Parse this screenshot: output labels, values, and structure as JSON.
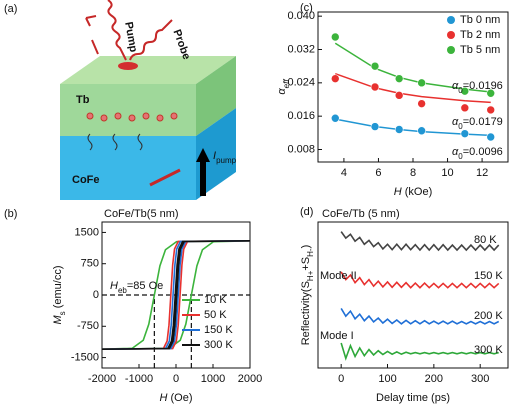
{
  "diagram": {
    "panel_label": "(a)",
    "pump": "Pump",
    "probe": "Probe",
    "top_layer": "Tb",
    "bottom_layer": "CoFe",
    "current": [
      {
        "text": "I",
        "style": "italic"
      },
      {
        "text": "pump",
        "style": "sub"
      }
    ]
  },
  "chart_data": [
    {
      "type": "line",
      "panel_label": "(b)",
      "title": "CoFe/Tb(5 nm)",
      "xlabel": [
        {
          "text": "H",
          "style": "italic"
        },
        {
          "text": " (Oe)"
        }
      ],
      "ylabel": [
        {
          "text": "M",
          "style": "italic"
        },
        {
          "text": "s",
          "style": "sub"
        },
        {
          "text": " (emu/cc)"
        }
      ],
      "xlim": [
        -2000,
        2000
      ],
      "xticks": [
        -2000,
        -1000,
        0,
        1000,
        2000
      ],
      "ylim": [
        -1750,
        1750
      ],
      "yticks": [
        -1500,
        -750,
        0,
        750,
        1500
      ],
      "legend": "lower right",
      "reference_lines": {
        "y": [
          0
        ],
        "x": [
          -585,
          415
        ]
      },
      "annotations": [
        {
          "parts": [
            {
              "text": "H",
              "style": "italic"
            },
            {
              "text": "eb",
              "style": "sub"
            },
            {
              "text": "=85 Oe"
            }
          ],
          "color": "#3cb43c"
        }
      ],
      "series": [
        {
          "name": "10 K",
          "color": "#3cb43c",
          "x": [
            2000,
            15,
            -285,
            -435,
            -585,
            -735,
            -885,
            -1185,
            -2000,
            -2000,
            -185,
            115,
            265,
            415,
            565,
            715,
            1015,
            2000
          ],
          "values": [
            1300,
            1279,
            1084,
            698,
            0,
            -698,
            -1084,
            -1279,
            -1300,
            -1300,
            -1279,
            -1084,
            -698,
            0,
            698,
            1084,
            1279,
            1300
          ]
        },
        {
          "name": "50 K",
          "color": "#e8312f",
          "x": [
            2000,
            60,
            -40,
            -90,
            -140,
            -190,
            -240,
            -340,
            -2000,
            -2000,
            -90,
            10,
            60,
            110,
            160,
            210,
            310,
            2000
          ],
          "values": [
            1300,
            1283,
            1103,
            721,
            0,
            -721,
            -1103,
            -1283,
            -1300,
            -1300,
            -1283,
            -1103,
            -721,
            0,
            721,
            1103,
            1283,
            1300
          ]
        },
        {
          "name": "150 K",
          "color": "#1f6fd6",
          "x": [
            2000,
            120,
            20,
            -30,
            -80,
            -130,
            -180,
            -280,
            -2000,
            -2000,
            -140,
            -40,
            10,
            60,
            110,
            160,
            260,
            2000
          ],
          "values": [
            1300,
            1283,
            1103,
            721,
            0,
            -721,
            -1103,
            -1283,
            -1300,
            -1300,
            -1283,
            -1103,
            -721,
            0,
            721,
            1103,
            1283,
            1300
          ]
        },
        {
          "name": "300 K",
          "color": "#111111",
          "x": [
            2000,
            180,
            80,
            30,
            -20,
            -70,
            -120,
            -220,
            -2000,
            -2000,
            -180,
            -80,
            -30,
            20,
            70,
            120,
            220,
            2000
          ],
          "values": [
            1300,
            1283,
            1103,
            721,
            0,
            -721,
            -1103,
            -1283,
            -1300,
            -1300,
            -1283,
            -1103,
            -721,
            0,
            721,
            1103,
            1283,
            1300
          ]
        }
      ]
    },
    {
      "type": "scatter",
      "panel_label": "(c)",
      "xlabel": [
        {
          "text": "H",
          "style": "italic"
        },
        {
          "text": " (kOe)"
        }
      ],
      "ylabel": [
        {
          "text": "α",
          "style": "italic"
        },
        {
          "text": "eff",
          "style": "sub italic"
        }
      ],
      "xlim": [
        2.5,
        13.5
      ],
      "xticks": [
        4,
        6,
        8,
        10,
        12
      ],
      "ylim": [
        0.005,
        0.041
      ],
      "yticks": [
        0.008,
        0.016,
        0.024,
        0.032,
        {
          "value": 0.04,
          "label": "0.040"
        }
      ],
      "legend": "upper right",
      "x": [
        3.5,
        5.8,
        7.2,
        8.5,
        11,
        12.5
      ],
      "annotations": [
        {
          "parts": [
            {
              "text": "α",
              "style": "italic"
            },
            {
              "text": "0",
              "style": "sub"
            },
            {
              "text": "=0.0196"
            }
          ],
          "color": "#3cb43c"
        },
        {
          "parts": [
            {
              "text": "α",
              "style": "italic"
            },
            {
              "text": "0",
              "style": "sub"
            },
            {
              "text": "=0.0179"
            }
          ],
          "color": "#e8312f"
        },
        {
          "parts": [
            {
              "text": "α",
              "style": "italic"
            },
            {
              "text": "0",
              "style": "sub"
            },
            {
              "text": "=0.0096"
            }
          ],
          "color": "#2196d3"
        }
      ],
      "series": [
        {
          "name": "Tb 0 nm",
          "color": "#2196d3",
          "values": [
            0.0155,
            0.0135,
            0.0128,
            0.0125,
            0.0118,
            0.011
          ],
          "fit": [
            0.0153,
            0.0135,
            0.0128,
            0.0123,
            0.0117,
            0.0114
          ]
        },
        {
          "name": "Tb 2 nm",
          "color": "#e8312f",
          "values": [
            0.025,
            0.023,
            0.021,
            0.019,
            0.018,
            0.0175
          ],
          "fit": [
            0.0262,
            0.0228,
            0.0215,
            0.0207,
            0.0197,
            0.0193
          ]
        },
        {
          "name": "Tb 5 nm",
          "color": "#3cb43c",
          "values": [
            0.035,
            0.028,
            0.025,
            0.024,
            0.022,
            0.0215
          ],
          "fit": [
            0.0335,
            0.0275,
            0.0253,
            0.024,
            0.0225,
            0.0218
          ]
        }
      ]
    },
    {
      "type": "line",
      "panel_label": "(d)",
      "title": "CoFe/Tb (5 nm)",
      "xlabel": [
        {
          "text": "Delay time (ps)"
        }
      ],
      "ylabel": [
        {
          "text": "Reflectivity(S"
        },
        {
          "text": "H+",
          "style": "sub"
        },
        {
          "text": "+S"
        },
        {
          "text": "H-",
          "style": "sub"
        },
        {
          "text": ")"
        }
      ],
      "xlim": [
        -50,
        360
      ],
      "xticks": [
        0,
        100,
        200,
        300
      ],
      "ylim": [
        0.2,
        4.0
      ],
      "x": [
        0,
        10,
        20,
        30,
        40,
        50,
        60,
        70,
        80,
        90,
        100,
        110,
        120,
        130,
        140,
        150,
        160,
        170,
        180,
        190,
        200,
        210,
        220,
        230,
        240,
        250,
        260,
        270,
        280,
        290,
        300,
        310,
        320,
        330,
        340
      ],
      "annotations": [
        {
          "parts": [
            {
              "text": "80 K"
            }
          ],
          "color": "#111111"
        },
        {
          "parts": [
            {
              "text": "Mode II"
            }
          ],
          "color": "#e8312f"
        },
        {
          "parts": [
            {
              "text": "150 K"
            }
          ],
          "color": "#111111"
        },
        {
          "parts": [
            {
              "text": "200 K"
            }
          ],
          "color": "#111111"
        },
        {
          "parts": [
            {
              "text": "Mode I"
            }
          ],
          "color": "#111111"
        },
        {
          "parts": [
            {
              "text": "300 K"
            }
          ],
          "color": "#111111"
        }
      ],
      "series": [
        {
          "color": "#444444",
          "values": [
            3.75,
            3.58,
            3.68,
            3.5,
            3.6,
            3.42,
            3.52,
            3.36,
            3.46,
            3.3,
            3.42,
            3.28,
            3.42,
            3.28,
            3.42,
            3.28,
            3.41,
            3.27,
            3.41,
            3.27,
            3.41,
            3.27,
            3.41,
            3.27,
            3.4,
            3.27,
            3.4,
            3.27,
            3.4,
            3.27,
            3.4,
            3.27,
            3.4,
            3.27,
            3.4
          ]
        },
        {
          "color": "#e8312f",
          "values": [
            2.7,
            2.5,
            2.62,
            2.42,
            2.55,
            2.37,
            2.5,
            2.33,
            2.46,
            2.31,
            2.44,
            2.3,
            2.43,
            2.3,
            2.42,
            2.29,
            2.41,
            2.29,
            2.41,
            2.29,
            2.4,
            2.29,
            2.4,
            2.29,
            2.4,
            2.29,
            2.4,
            2.29,
            2.4,
            2.29,
            2.4,
            2.29,
            2.4,
            2.29,
            2.4
          ]
        },
        {
          "color": "#1f6fd6",
          "values": [
            1.75,
            1.55,
            1.68,
            1.48,
            1.6,
            1.43,
            1.55,
            1.4,
            1.5,
            1.37,
            1.47,
            1.36,
            1.45,
            1.35,
            1.44,
            1.35,
            1.43,
            1.35,
            1.43,
            1.35,
            1.42,
            1.35,
            1.42,
            1.35,
            1.42,
            1.35,
            1.41,
            1.35,
            1.41,
            1.35,
            1.41,
            1.35,
            1.41,
            1.35,
            1.41
          ]
        },
        {
          "color": "#2ea83a",
          "values": [
            0.85,
            0.45,
            0.78,
            0.5,
            0.72,
            0.52,
            0.68,
            0.54,
            0.65,
            0.55,
            0.63,
            0.56,
            0.62,
            0.56,
            0.61,
            0.57,
            0.6,
            0.57,
            0.6,
            0.57,
            0.6,
            0.57,
            0.6,
            0.57,
            0.6,
            0.57,
            0.6,
            0.57,
            0.6,
            0.57,
            0.6,
            0.57,
            0.6,
            0.57,
            0.6
          ]
        }
      ]
    }
  ]
}
